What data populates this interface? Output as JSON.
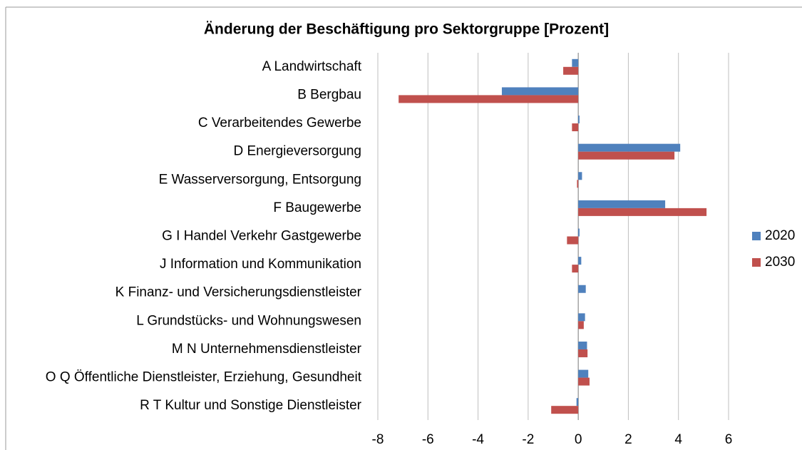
{
  "chart_data": {
    "type": "bar",
    "orientation": "horizontal",
    "title": "Änderung der Beschäftigung pro Sektorgruppe [Prozent]",
    "categories": [
      "A Landwirtschaft",
      "B Bergbau",
      "C Verarbeitendes  Gewerbe",
      "D Energieversorgung",
      "E Wasserversorgung, Entsorgung",
      "F Baugewerbe",
      "G I Handel Verkehr Gastgewerbe",
      "J Information und Kommunikation",
      "K Finanz- und Versicherungsdienstleister",
      "L Grundstücks- und Wohnungswesen",
      "M N Unternehmensdienstleister",
      "O Q Öffentliche Dienstleister, Erziehung, Gesundheit",
      "R T Kultur und Sonstige Dienstleister"
    ],
    "series": [
      {
        "name": "2020",
        "color": "#4f81bd",
        "values": [
          -0.25,
          -3.05,
          0.05,
          4.07,
          0.15,
          3.47,
          0.05,
          0.12,
          0.3,
          0.27,
          0.35,
          0.4,
          -0.07
        ]
      },
      {
        "name": "2030",
        "color": "#c0504d",
        "values": [
          -0.6,
          -7.17,
          -0.25,
          3.84,
          -0.05,
          5.12,
          -0.45,
          -0.25,
          0,
          0.22,
          0.37,
          0.45,
          -1.08
        ]
      }
    ],
    "xlim": [
      -8,
      6
    ],
    "xticks": [
      -8,
      -6,
      -4,
      -2,
      0,
      2,
      4,
      6
    ],
    "grid": true,
    "legend": "right"
  }
}
